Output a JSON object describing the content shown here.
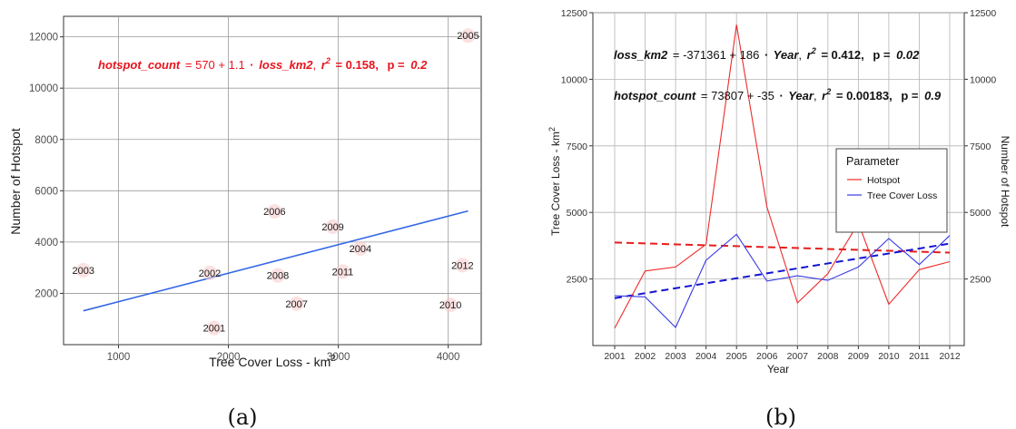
{
  "chart_data": [
    {
      "type": "scatter",
      "panel_label": "(a)",
      "xlabel": "Tree Cover Loss - km",
      "xlabel_sup": "2",
      "ylabel": "Number of Hotspot",
      "xlim": [
        500,
        4300
      ],
      "ylim": [
        0,
        12800
      ],
      "xticks": [
        "1000",
        "2000",
        "3000",
        "4000"
      ],
      "xtick_values": [
        1000,
        2000,
        3000,
        4000
      ],
      "yticks": [
        "2000",
        "4000",
        "6000",
        "8000",
        "10000",
        "12000"
      ],
      "ytick_values": [
        2000,
        4000,
        6000,
        8000,
        10000,
        12000
      ],
      "points": [
        {
          "label": "2001",
          "x": 1870,
          "y": 650
        },
        {
          "label": "2002",
          "x": 1830,
          "y": 2800
        },
        {
          "label": "2003",
          "x": 680,
          "y": 2900
        },
        {
          "label": "2004",
          "x": 3200,
          "y": 3750
        },
        {
          "label": "2005",
          "x": 4180,
          "y": 12050
        },
        {
          "label": "2006",
          "x": 2420,
          "y": 5200
        },
        {
          "label": "2007",
          "x": 2620,
          "y": 1600
        },
        {
          "label": "2008",
          "x": 2450,
          "y": 2700
        },
        {
          "label": "2009",
          "x": 2950,
          "y": 4600
        },
        {
          "label": "2010",
          "x": 4020,
          "y": 1550
        },
        {
          "label": "2011",
          "x": 3040,
          "y": 2850
        },
        {
          "label": "2012",
          "x": 4130,
          "y": 3100
        }
      ],
      "fit_line": {
        "x": [
          680,
          4180
        ],
        "y": [
          1320,
          5210
        ],
        "color": "#3366e6"
      },
      "equation": {
        "lhs": "hotspot_count",
        "rhs_a": "= 570 + 1.1",
        "dot": "·",
        "var": "loss_km2",
        "r2_text": "r",
        "r2_sup": "2",
        "r2_value": "= 0.158,",
        "p_label": "p =",
        "p_value": "0.2",
        "color": "#e8141e"
      },
      "grid": true
    },
    {
      "type": "line",
      "panel_label": "(b)",
      "xlabel": "Year",
      "ylabel_left": "Tree Cover Loss - km",
      "ylabel_left_sup": "2",
      "ylabel_right": "Number of Hotspot",
      "ylim": [
        0,
        12500
      ],
      "yticks_left": [
        "2500",
        "5000",
        "7500",
        "10000",
        "12500"
      ],
      "yticks_right": [
        "2500",
        "5000",
        "7500",
        "10000",
        "12500"
      ],
      "ytick_values": [
        2500,
        5000,
        7500,
        10000,
        12500
      ],
      "x": [
        "2001",
        "2002",
        "2003",
        "2004",
        "2005",
        "2006",
        "2007",
        "2008",
        "2009",
        "2010",
        "2011",
        "2012"
      ],
      "series": [
        {
          "name": "Hotspot",
          "color": "#ee2a2a",
          "values": [
            650,
            2800,
            2950,
            3800,
            12050,
            5200,
            1600,
            2700,
            4600,
            1550,
            2850,
            3150
          ]
        },
        {
          "name": "Tree Cover Loss",
          "color": "#3a3ae8",
          "values": [
            1870,
            1830,
            680,
            3200,
            4180,
            2420,
            2620,
            2450,
            2950,
            4020,
            3040,
            4130
          ]
        }
      ],
      "trend_lines": [
        {
          "series": "Hotspot",
          "color": "#e61c1c",
          "start": 3870,
          "end": 3490
        },
        {
          "series": "Tree Cover Loss",
          "color": "#1414d2",
          "start": 1780,
          "end": 3830
        }
      ],
      "legend": {
        "title": "Parameter",
        "position": "right",
        "items": [
          "Hotspot",
          "Tree Cover Loss"
        ]
      },
      "equations": [
        {
          "lhs": "loss_km2",
          "rhs_a": "= -371361 + 186",
          "dot": "·",
          "var": "Year",
          "r2_text": "r",
          "r2_sup": "2",
          "r2_value": "= 0.412,",
          "p_label": "p =",
          "p_value": "0.02"
        },
        {
          "lhs": "hotspot_count",
          "rhs_a": "= 73807 + -35",
          "dot": "·",
          "var": "Year",
          "r2_text": "r",
          "r2_sup": "2",
          "r2_value": "= 0.00183,",
          "p_label": "p =",
          "p_value": "0.9"
        }
      ],
      "grid": true
    }
  ]
}
